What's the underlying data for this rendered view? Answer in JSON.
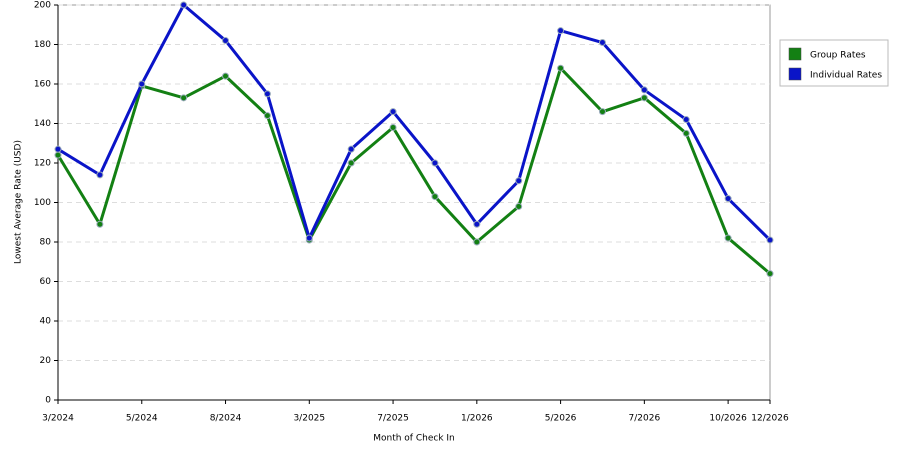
{
  "chart_data": {
    "type": "line",
    "x_label": "Month of Check In",
    "y_label": "Lowest Average Rate (USD)",
    "categories": [
      "3/2024",
      null,
      "5/2024",
      null,
      "8/2024",
      null,
      "3/2025",
      null,
      "7/2025",
      null,
      "1/2026",
      null,
      "5/2026",
      null,
      "7/2026",
      null,
      "10/2026",
      "12/2026"
    ],
    "series": [
      {
        "name": "Group Rates",
        "color": "#138013",
        "values": [
          124,
          89,
          159,
          153,
          164,
          144,
          81,
          120,
          138,
          103,
          80,
          98,
          168,
          146,
          153,
          135,
          82,
          64
        ]
      },
      {
        "name": "Individual Rates",
        "color": "#0a14c8",
        "values": [
          127,
          114,
          160,
          200,
          182,
          155,
          82,
          127,
          146,
          120,
          89,
          111,
          187,
          181,
          157,
          142,
          102,
          81
        ]
      }
    ],
    "ylim": [
      0,
      200
    ],
    "yticks": [
      0,
      20,
      40,
      60,
      80,
      100,
      120,
      140,
      160,
      180,
      200
    ],
    "grid": true,
    "legend": "right"
  }
}
